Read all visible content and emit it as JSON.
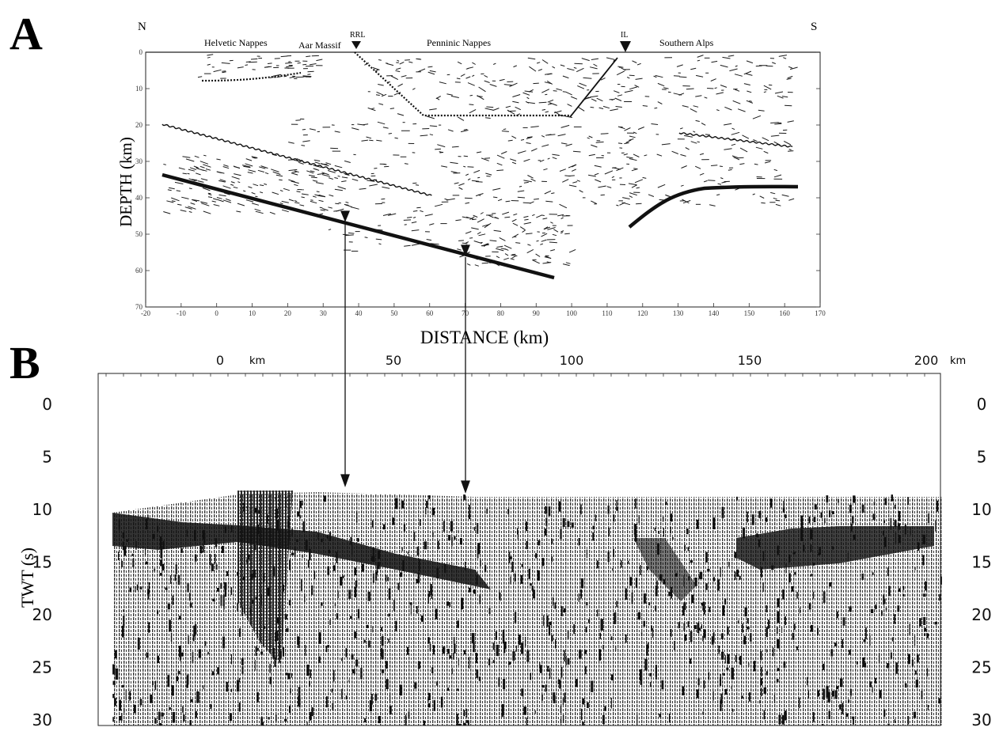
{
  "panel_a": {
    "label": "A",
    "north": "N",
    "south": "S",
    "regions": [
      "Helvetic Nappes",
      "Aar Massif",
      "Penninic Nappes",
      "Southern Alps"
    ],
    "markers": [
      "RRL",
      "IL"
    ],
    "ylabel": "DEPTH (km)",
    "xlabel": "DISTANCE (km)",
    "x_ticks": [
      "-20",
      "-10",
      "0",
      "10",
      "20",
      "30",
      "40",
      "50",
      "60",
      "70",
      "80",
      "90",
      "100",
      "110",
      "120",
      "130",
      "140",
      "150",
      "160",
      "170"
    ],
    "y_ticks": [
      "0",
      "10",
      "20",
      "30",
      "40",
      "50",
      "60",
      "70"
    ]
  },
  "panel_b": {
    "label": "B",
    "x_ticks": [
      "0",
      "50",
      "100",
      "150",
      "200"
    ],
    "x_unit": "km",
    "ylabel": "TWT (s)",
    "y_ticks": [
      "0",
      "5",
      "10",
      "15",
      "20",
      "25",
      "30"
    ]
  },
  "colors": {
    "ink": "#111111",
    "paper": "#ffffff"
  }
}
